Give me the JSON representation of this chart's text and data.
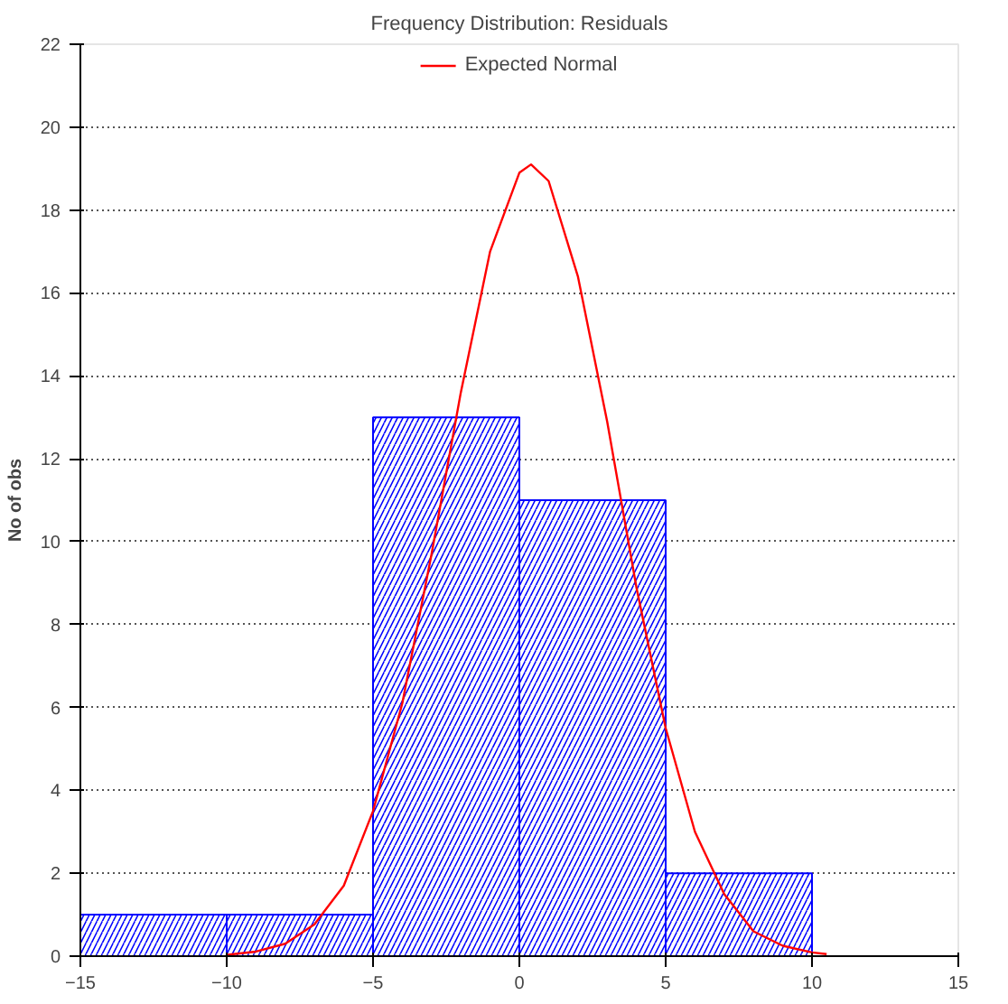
{
  "chart_data": {
    "type": "histogram",
    "title": "Frequency Distribution: Residuals",
    "ylabel": "No of obs",
    "xlim": [
      -15,
      15
    ],
    "xticks": [
      -15,
      -10,
      -5,
      0,
      5,
      10,
      15
    ],
    "ylim": [
      0,
      22
    ],
    "yticks": [
      0,
      2,
      4,
      6,
      8,
      10,
      12,
      14,
      16,
      18,
      20,
      22
    ],
    "grid": "y",
    "legend": "top",
    "series": [
      {
        "color": "#0000ff",
        "bins": [
          -15,
          -10,
          -5,
          0,
          5,
          10,
          15
        ],
        "values": [
          1,
          1,
          13,
          11,
          2,
          0
        ]
      },
      {
        "type": "line",
        "name": "Expected Normal",
        "color": "#ff0000",
        "x": [
          -10,
          -9,
          -8,
          -7,
          -6,
          -5,
          -4,
          -3,
          -2,
          -1,
          0,
          0.4,
          1,
          2,
          3,
          4,
          5,
          6,
          7,
          8,
          9,
          10,
          10.5
        ],
        "values": [
          0.03,
          0.11,
          0.3,
          0.77,
          1.7,
          3.5,
          6.1,
          9.7,
          13.6,
          17.0,
          18.9,
          19.1,
          18.7,
          16.4,
          12.9,
          8.9,
          5.5,
          3.0,
          1.5,
          0.6,
          0.25,
          0.09,
          0.05
        ]
      }
    ]
  }
}
